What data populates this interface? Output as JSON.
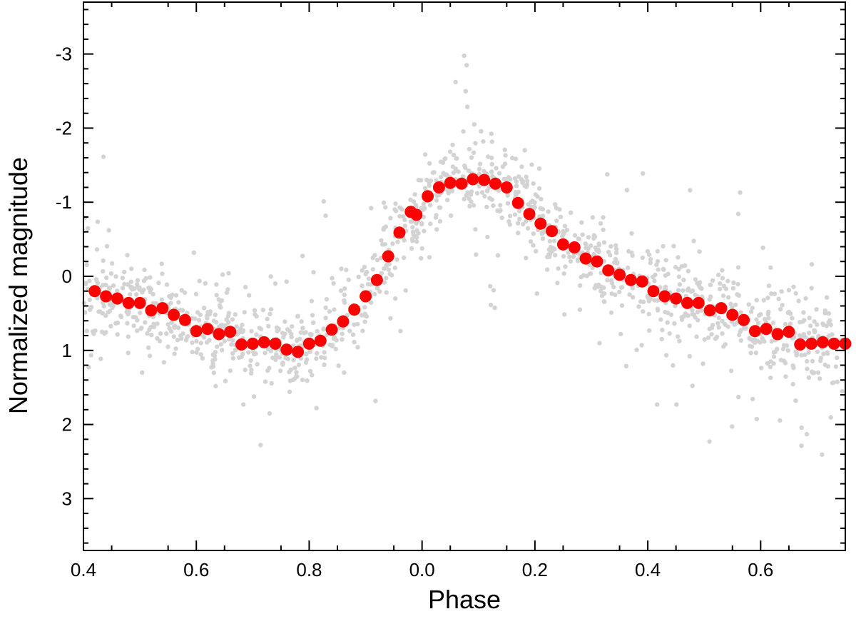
{
  "chart_data": {
    "type": "scatter",
    "title": "",
    "xlabel": "Phase",
    "ylabel": "Normalized magnitude",
    "x_axis_note": "phase wraps from 0.4 through 1.0 (shown as 0.0) to 0.75",
    "x_unwrapped_range": [
      0.4,
      1.75
    ],
    "ylim": [
      3.7,
      -3.7
    ],
    "y_inverted": true,
    "x_ticks": [
      {
        "value": 0.4,
        "label": "0.4"
      },
      {
        "value": 0.6,
        "label": "0.6"
      },
      {
        "value": 0.8,
        "label": "0.8"
      },
      {
        "value": 1.0,
        "label": "0.0"
      },
      {
        "value": 1.2,
        "label": "0.2"
      },
      {
        "value": 1.4,
        "label": "0.4"
      },
      {
        "value": 1.6,
        "label": "0.6"
      }
    ],
    "y_ticks": [
      {
        "value": -3,
        "label": "-3"
      },
      {
        "value": -2,
        "label": "-2"
      },
      {
        "value": -1,
        "label": "-1"
      },
      {
        "value": 0,
        "label": "0"
      },
      {
        "value": 1,
        "label": "1"
      },
      {
        "value": 2,
        "label": "2"
      },
      {
        "value": 3,
        "label": "3"
      }
    ],
    "grid": false,
    "colors": {
      "binned": "#ff0000",
      "raw": "#d3d3d3"
    },
    "series": [
      {
        "kind": "raw",
        "description_points": 1400,
        "scatter_sigma": 0.27
      },
      {
        "kind": "binned",
        "x": [
          0.42,
          0.44,
          0.46,
          0.48,
          0.5,
          0.52,
          0.54,
          0.56,
          0.58,
          0.6,
          0.62,
          0.64,
          0.66,
          0.68,
          0.7,
          0.72,
          0.74,
          0.76,
          0.78,
          0.8,
          0.82,
          0.84,
          0.86,
          0.88,
          0.9,
          0.92,
          0.94,
          0.96,
          0.98,
          0.99,
          1.01,
          1.03,
          1.05,
          1.07,
          1.09,
          1.11,
          1.13,
          1.15,
          1.17,
          1.19,
          1.21,
          1.23,
          1.25,
          1.27,
          1.29,
          1.31,
          1.33,
          1.35,
          1.37,
          1.39,
          1.41,
          1.43,
          1.45,
          1.47,
          1.49,
          1.51,
          1.53,
          1.55,
          1.57,
          1.59,
          1.61,
          1.63,
          1.65,
          1.67,
          1.69,
          1.71,
          1.73,
          1.75
        ],
        "y": [
          0.2,
          0.27,
          0.3,
          0.36,
          0.36,
          0.46,
          0.43,
          0.52,
          0.59,
          0.74,
          0.71,
          0.78,
          0.75,
          0.92,
          0.91,
          0.89,
          0.91,
          0.99,
          1.02,
          0.91,
          0.87,
          0.72,
          0.61,
          0.45,
          0.27,
          0.05,
          -0.27,
          -0.59,
          -0.87,
          -0.83,
          -1.08,
          -1.2,
          -1.26,
          -1.25,
          -1.31,
          -1.3,
          -1.25,
          -1.2,
          -0.99,
          -0.84,
          -0.71,
          -0.61,
          -0.43,
          -0.39,
          -0.24,
          -0.2,
          -0.08,
          -0.02,
          0.05,
          0.07,
          0.2,
          0.27,
          0.3,
          0.36,
          0.36,
          0.46,
          0.43,
          0.52,
          0.59,
          0.74,
          0.71,
          0.78,
          0.75,
          0.92,
          0.91,
          0.89,
          0.91,
          0.91
        ]
      }
    ]
  }
}
